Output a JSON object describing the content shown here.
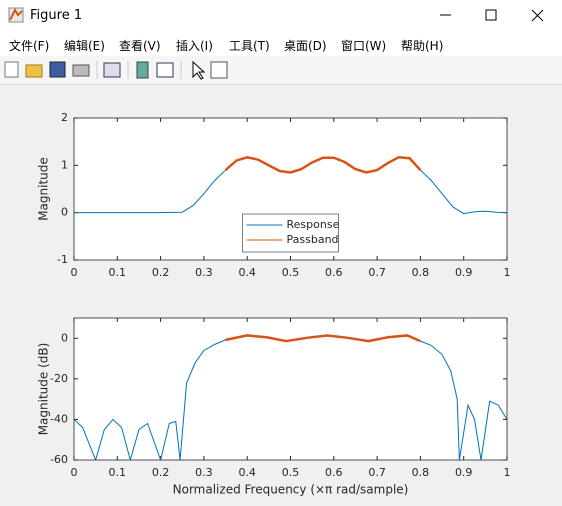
{
  "window": {
    "title": "Figure 1",
    "menu": [
      "文件(F)",
      "编辑(E)",
      "查看(V)",
      "插入(I)",
      "工具(T)",
      "桌面(D)",
      "窗口(W)",
      "帮助(H)"
    ]
  },
  "chart_data": [
    {
      "type": "line",
      "ylabel": "Magnitude",
      "xlim": [
        0,
        1
      ],
      "ylim": [
        -1,
        2
      ],
      "xticks": [
        0,
        0.1,
        0.2,
        0.3,
        0.4,
        0.5,
        0.6,
        0.7,
        0.8,
        0.9,
        1
      ],
      "yticks": [
        -1,
        0,
        1,
        2
      ],
      "legend": "south",
      "series": [
        {
          "name": "Response",
          "color": "#0072bd",
          "x": [
            0,
            0.05,
            0.1,
            0.15,
            0.2,
            0.25,
            0.275,
            0.3,
            0.325,
            0.35,
            0.375,
            0.4,
            0.425,
            0.45,
            0.475,
            0.5,
            0.525,
            0.55,
            0.575,
            0.6,
            0.625,
            0.65,
            0.675,
            0.7,
            0.725,
            0.75,
            0.775,
            0.8,
            0.825,
            0.85,
            0.875,
            0.9,
            0.925,
            0.95,
            0.975,
            1
          ],
          "values": [
            0,
            0,
            0,
            0,
            0,
            0.01,
            0.15,
            0.4,
            0.68,
            0.9,
            1.1,
            1.17,
            1.12,
            1.0,
            0.88,
            0.85,
            0.92,
            1.06,
            1.16,
            1.16,
            1.07,
            0.92,
            0.85,
            0.9,
            1.05,
            1.17,
            1.15,
            0.9,
            0.68,
            0.4,
            0.12,
            -0.02,
            0.02,
            0.03,
            0.01,
            0
          ]
        },
        {
          "name": "Passband",
          "color": "#d95319",
          "x": [
            0.35,
            0.375,
            0.4,
            0.425,
            0.45,
            0.475,
            0.5,
            0.525,
            0.55,
            0.575,
            0.6,
            0.625,
            0.65,
            0.675,
            0.7,
            0.725,
            0.75,
            0.775,
            0.8
          ],
          "values": [
            0.9,
            1.1,
            1.17,
            1.12,
            1.0,
            0.88,
            0.85,
            0.92,
            1.06,
            1.16,
            1.16,
            1.07,
            0.92,
            0.85,
            0.9,
            1.05,
            1.17,
            1.15,
            0.9
          ]
        }
      ]
    },
    {
      "type": "line",
      "ylabel": "Magnitude (dB)",
      "xlabel": "Normalized Frequency (×π rad/sample)",
      "xlim": [
        0,
        1
      ],
      "ylim": [
        -60,
        10
      ],
      "xticks": [
        0,
        0.1,
        0.2,
        0.3,
        0.4,
        0.5,
        0.6,
        0.7,
        0.8,
        0.9,
        1
      ],
      "yticks": [
        -60,
        -40,
        -20,
        0
      ],
      "series": [
        {
          "color": "#0072bd",
          "x": [
            0,
            0.02,
            0.05,
            0.07,
            0.09,
            0.11,
            0.13,
            0.15,
            0.17,
            0.2,
            0.22,
            0.235,
            0.245,
            0.26,
            0.28,
            0.3,
            0.325,
            0.35,
            0.4,
            0.445,
            0.49,
            0.54,
            0.585,
            0.63,
            0.68,
            0.725,
            0.77,
            0.8,
            0.825,
            0.85,
            0.87,
            0.885,
            0.89,
            0.91,
            0.925,
            0.94,
            0.96,
            0.98,
            1
          ],
          "values": [
            -40,
            -44,
            -60,
            -45,
            -40,
            -44,
            -60,
            -45,
            -42,
            -60,
            -42,
            -41,
            -60,
            -22,
            -12,
            -6,
            -3,
            -0.8,
            1.4,
            0.5,
            -1.4,
            0.3,
            1.4,
            0.3,
            -1.4,
            0.5,
            1.4,
            -1.4,
            -3.5,
            -8,
            -16,
            -30,
            -60,
            -33,
            -40,
            -60,
            -31,
            -33,
            -40
          ]
        },
        {
          "color": "#d95319",
          "x": [
            0.35,
            0.4,
            0.445,
            0.49,
            0.54,
            0.585,
            0.63,
            0.68,
            0.725,
            0.77,
            0.8
          ],
          "values": [
            -0.8,
            1.4,
            0.5,
            -1.4,
            0.3,
            1.4,
            0.3,
            -1.4,
            0.5,
            1.4,
            -1.4
          ]
        }
      ]
    }
  ]
}
